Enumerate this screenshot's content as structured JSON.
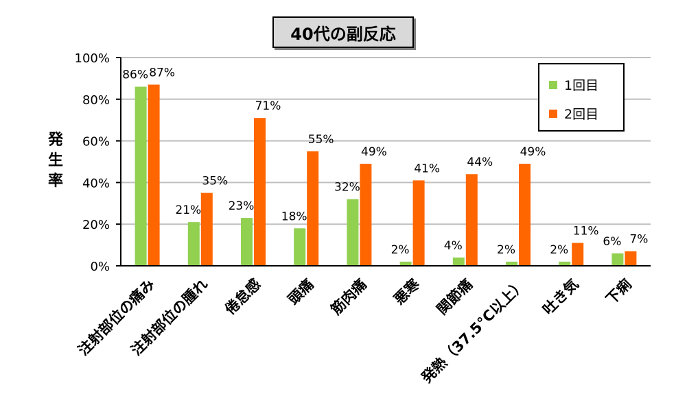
{
  "chart_data": {
    "type": "bar",
    "title": "40代の副反応",
    "ylabel": "発生率",
    "ylim": [
      0,
      100
    ],
    "yticks": [
      "0%",
      "20%",
      "40%",
      "60%",
      "80%",
      "100%"
    ],
    "grid": true,
    "legend_position": "top-right",
    "categories": [
      "注射部位の痛み",
      "注射部位の腫れ",
      "倦怠感",
      "頭痛",
      "筋肉痛",
      "悪寒",
      "関節痛",
      "発熱（37.5°C以上）",
      "吐き気",
      "下痢"
    ],
    "series": [
      {
        "name": "1回目",
        "color": "#92d050",
        "values": [
          86,
          21,
          23,
          18,
          32,
          2,
          4,
          2,
          2,
          6
        ],
        "labels": [
          "86%",
          "21%",
          "23%",
          "18%",
          "32%",
          "2%",
          "4%",
          "2%",
          "2%",
          "6%"
        ]
      },
      {
        "name": "2回目",
        "color": "#ff6600",
        "values": [
          87,
          35,
          71,
          55,
          49,
          41,
          44,
          49,
          11,
          7
        ],
        "labels": [
          "87%",
          "35%",
          "71%",
          "55%",
          "49%",
          "41%",
          "44%",
          "49%",
          "11%",
          "7%"
        ]
      }
    ]
  }
}
